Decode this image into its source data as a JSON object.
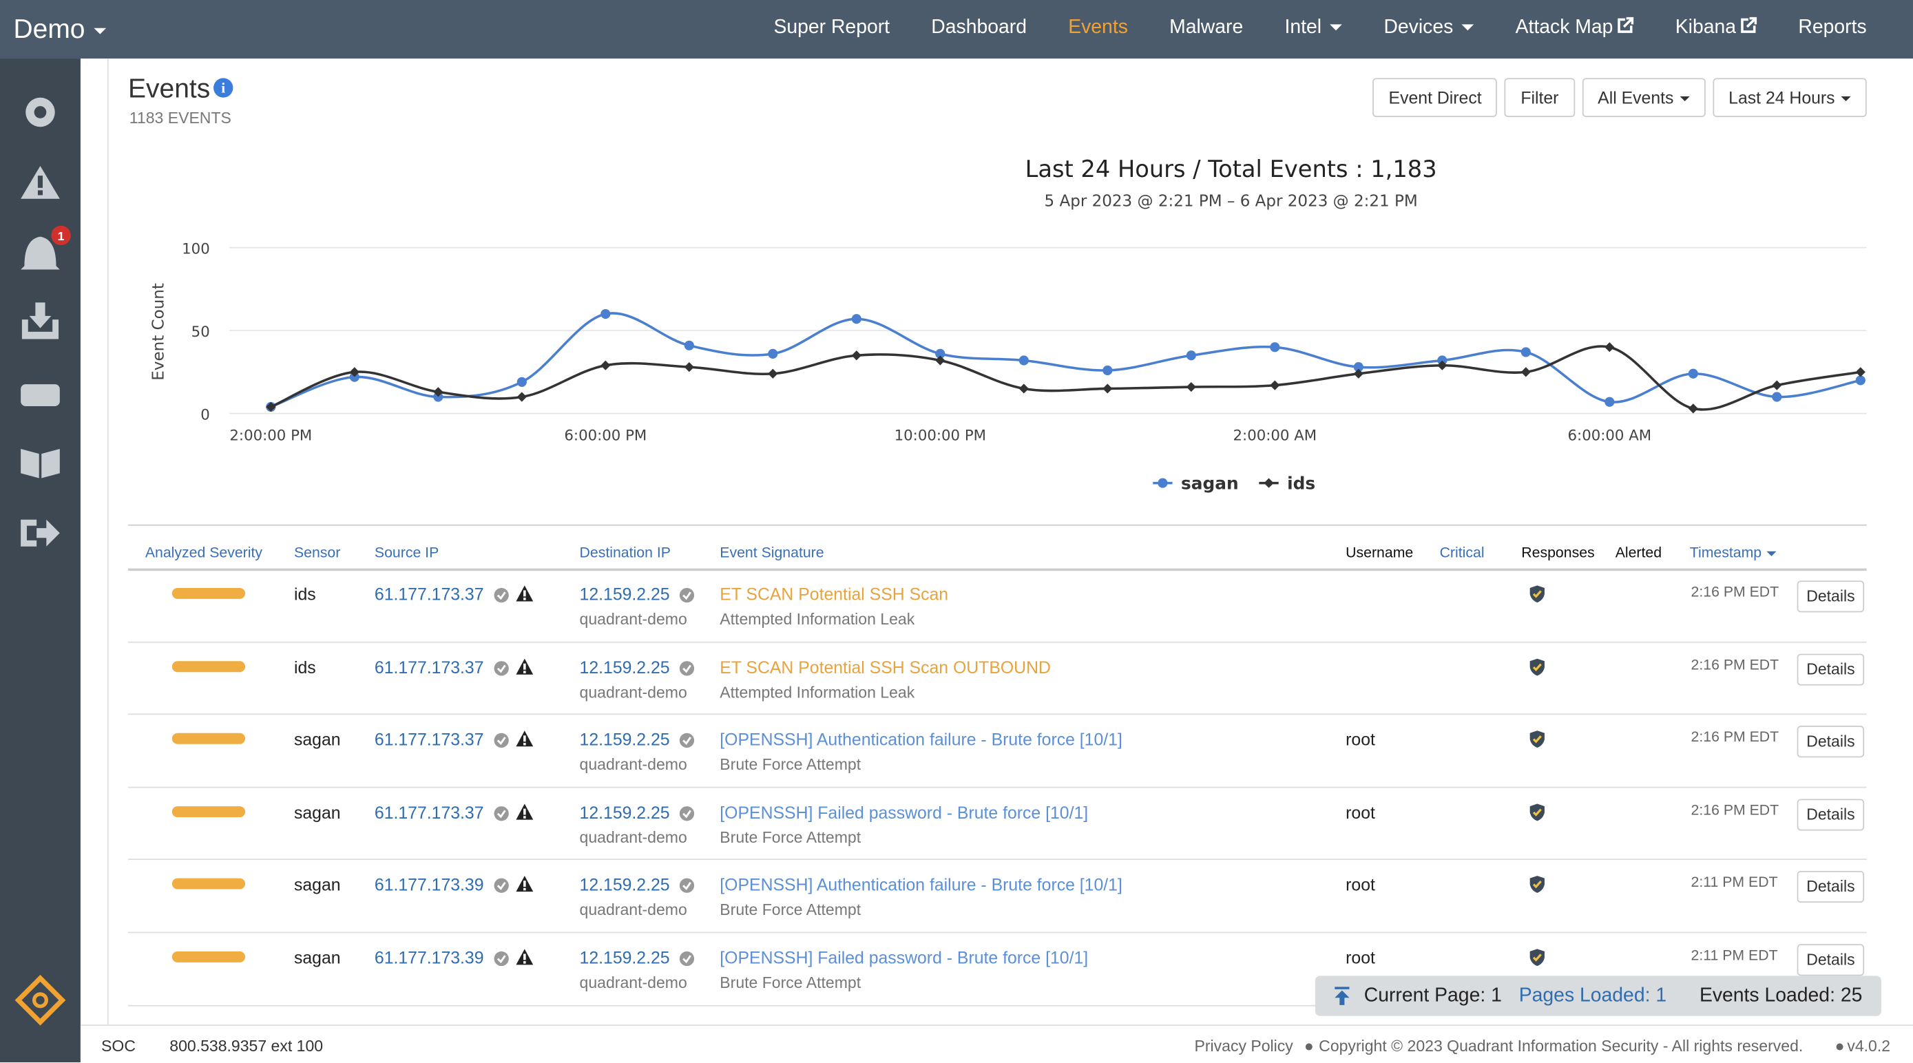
{
  "nav": {
    "brand": "Demo",
    "items": [
      "Super Report",
      "Dashboard",
      "Events",
      "Malware",
      "Intel",
      "Devices",
      "Attack Map",
      "Kibana",
      "Reports"
    ]
  },
  "sidebar": {
    "badge": "1"
  },
  "header": {
    "title": "Events",
    "count": "1183 EVENTS",
    "buttons": [
      "Event Direct",
      "Filter",
      "All Events",
      "Last 24 Hours"
    ]
  },
  "chart_data": {
    "type": "line",
    "title": "Last 24 Hours / Total Events : 1,183",
    "subtitle": "5 Apr 2023 @ 2:21 PM – 6 Apr 2023 @ 2:21 PM",
    "y_label": "Event Count",
    "categories": [
      "2:00:00 PM",
      null,
      null,
      null,
      "6:00:00 PM",
      null,
      null,
      null,
      "10:00:00 PM",
      null,
      null,
      null,
      "2:00:00 AM",
      null,
      null,
      null,
      "6:00:00 AM",
      null,
      null,
      null
    ],
    "series": [
      {
        "name": "sagan",
        "color": "#4a7fd0",
        "values": [
          4,
          22,
          10,
          19,
          60,
          41,
          36,
          57,
          36,
          32,
          26,
          35,
          40,
          28,
          32,
          37,
          7,
          24,
          10,
          20
        ]
      },
      {
        "name": "ids",
        "color": "#333333",
        "values": [
          4,
          25,
          13,
          10,
          29,
          28,
          24,
          35,
          32,
          15,
          15,
          16,
          17,
          24,
          29,
          25,
          40,
          3,
          17,
          25
        ]
      }
    ],
    "ylim": [
      0,
      100
    ],
    "yticks": [
      0,
      50,
      100
    ],
    "grid": true
  },
  "table": {
    "columns": [
      "Analyzed Severity",
      "Sensor",
      "Source IP",
      "Destination IP",
      "Event Signature",
      "Username",
      "Critical",
      "Responses",
      "Alerted",
      "Timestamp"
    ],
    "rows": [
      {
        "sensor": "ids",
        "source_ip": "61.177.173.37",
        "dest_ip": "12.159.2.25",
        "dest_host": "quadrant-demo",
        "signature": "ET SCAN Potential SSH Scan",
        "category": "Attempted Information Leak",
        "username": null,
        "time": "2:16 PM EDT",
        "action": "Details"
      },
      {
        "sensor": "ids",
        "source_ip": "61.177.173.37",
        "dest_ip": "12.159.2.25",
        "dest_host": "quadrant-demo",
        "signature": "ET SCAN Potential SSH Scan OUTBOUND",
        "category": "Attempted Information Leak",
        "username": null,
        "time": "2:16 PM EDT",
        "action": "Details"
      },
      {
        "sensor": "sagan",
        "source_ip": "61.177.173.37",
        "dest_ip": "12.159.2.25",
        "dest_host": "quadrant-demo",
        "signature": "[OPENSSH] Authentication failure - Brute force [10/1]",
        "category": "Brute Force Attempt",
        "username": "root",
        "time": "2:16 PM EDT",
        "action": "Details"
      },
      {
        "sensor": "sagan",
        "source_ip": "61.177.173.37",
        "dest_ip": "12.159.2.25",
        "dest_host": "quadrant-demo",
        "signature": "[OPENSSH] Failed password - Brute force [10/1]",
        "category": "Brute Force Attempt",
        "username": "root",
        "time": "2:16 PM EDT",
        "action": "Details"
      },
      {
        "sensor": "sagan",
        "source_ip": "61.177.173.39",
        "dest_ip": "12.159.2.25",
        "dest_host": "quadrant-demo",
        "signature": "[OPENSSH] Authentication failure - Brute force [10/1]",
        "category": "Brute Force Attempt",
        "username": "root",
        "time": "2:11 PM EDT",
        "action": "Details"
      },
      {
        "sensor": "sagan",
        "source_ip": "61.177.173.39",
        "dest_ip": "12.159.2.25",
        "dest_host": "quadrant-demo",
        "signature": "[OPENSSH] Failed password - Brute force [10/1]",
        "category": "Brute Force Attempt",
        "username": "root",
        "time": "2:11 PM EDT",
        "action": "Details"
      }
    ]
  },
  "pager": {
    "current": "Current Page: 1",
    "loaded_pages": "Pages Loaded: 1",
    "loaded_events": "Events Loaded: 25"
  },
  "footer": {
    "soc": "SOC",
    "phone": "800.538.9357 ext 100",
    "privacy": "Privacy Policy",
    "copyright": "Copyright © 2023 Quadrant Information Security - All rights reserved.",
    "version": "v4.0.2"
  }
}
